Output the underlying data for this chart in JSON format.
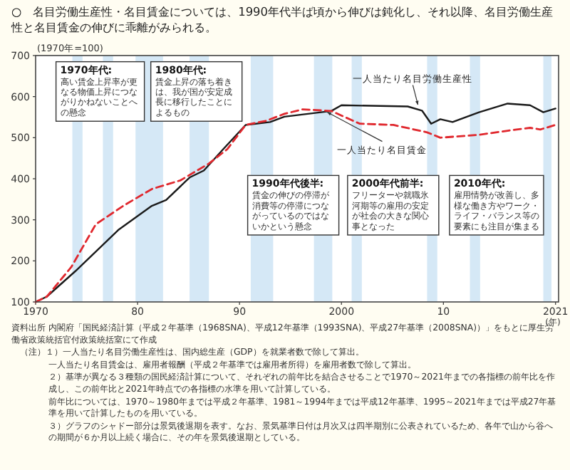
{
  "chart_data": {
    "type": "line",
    "title": "○　名目労働生産性・名目賃金については、1990年代半ば頃から伸びは鈍化し、それ以降、名目労働生産性と名目賃金の伸びに乖離がみられる。",
    "ylabel": "(1970年=100)",
    "xlabel": "(年)",
    "xlim": [
      1970,
      2021.3
    ],
    "ylim": [
      100,
      700
    ],
    "xticks": [
      1970,
      {
        "value": 1980,
        "label": "80"
      },
      {
        "value": 1990,
        "label": "90"
      },
      2000,
      {
        "value": 2010,
        "label": "10"
      },
      2021
    ],
    "yticks": [
      100,
      200,
      300,
      400,
      500,
      600,
      700
    ],
    "legend": false,
    "grid": false,
    "series": [
      {
        "name": "一人当たり名目労働生産性",
        "color": "#1a1a1a",
        "line_style": "solid",
        "x": [
          1970,
          1971.1,
          1973.9,
          1978.1,
          1981.4,
          1982.8,
          1985.1,
          1986.5,
          1988.4,
          1990.6,
          1993,
          1994.4,
          1999,
          2000,
          2006.5,
          2007.9,
          2008.8,
          2009.7,
          2010.9,
          2013.5,
          2016.3,
          2018.5,
          2019.8,
          2021
        ],
        "values": [
          100,
          113,
          175,
          275,
          334,
          348,
          403,
          420,
          472,
          531,
          538,
          551,
          565,
          579,
          576,
          566,
          534,
          545,
          538,
          562,
          583,
          579,
          562,
          571
        ]
      },
      {
        "name": "一人当たり名目賃金",
        "color": "#e0282e",
        "line_style": "dashed",
        "x": [
          1970,
          1971.1,
          1973.5,
          1975.9,
          1978.6,
          1981.4,
          1984.2,
          1987,
          1988.8,
          1990.6,
          1992.6,
          1994.4,
          1996.2,
          1999,
          2001.8,
          2005.1,
          2008.4,
          2009.7,
          2013.5,
          2016.3,
          2018.5,
          2019.5,
          2021
        ],
        "values": [
          100,
          113,
          185,
          289,
          334,
          375,
          396,
          437,
          472,
          531,
          541,
          558,
          569,
          565,
          534,
          531,
          513,
          500,
          507,
          517,
          524,
          520,
          531
        ]
      }
    ],
    "bands": [
      {
        "axis": "x",
        "from": 1973.6,
        "to": 1974.6,
        "color": "#d5e8f6"
      },
      {
        "axis": "x",
        "from": 1976.6,
        "to": 1977.6,
        "color": "#d5e8f6"
      },
      {
        "axis": "x",
        "from": 1979.8,
        "to": 1982.5,
        "color": "#d5e8f6"
      },
      {
        "axis": "x",
        "from": 1985.1,
        "to": 1987,
        "color": "#d5e8f6"
      },
      {
        "axis": "x",
        "from": 1991.1,
        "to": 1993.3,
        "color": "#d5e8f6"
      },
      {
        "axis": "x",
        "from": 1997.3,
        "to": 1999.1,
        "color": "#d5e8f6"
      },
      {
        "axis": "x",
        "from": 2001,
        "to": 2002,
        "color": "#d5e8f6"
      },
      {
        "axis": "x",
        "from": 2008.4,
        "to": 2009.4,
        "color": "#d5e8f6"
      },
      {
        "axis": "x",
        "from": 2012.6,
        "to": 2013.6,
        "color": "#d5e8f6"
      },
      {
        "axis": "x",
        "from": 2019.8,
        "to": 2020.6,
        "color": "#d5e8f6"
      }
    ],
    "annotations": [
      "1970年代:\n高い賃金上昇率が更なる物価上昇につながりかねないことへの懸念",
      "1980年代:\n賃金上昇の落ち着きは、我が国が安定成長に移行したことによるもの",
      "1990年代後半:\n賃金の伸びの停滞が消費等の停滞につながっているのではないかという懸念",
      "2000年代前半:\nフリーターや就職氷河期等の雇用の安定が社会の大きな関心事となった",
      "2010年代:\n雇用情勢が改善し、多様な働き方やワーク・ライフ・バランス等の要素にも注目が集まる",
      "資料出所 内閣府「国民経済計算（平成２年基準（1968SNA)、平成12年基準（1993SNA)、平成27年基準（2008SNA)）」をもとに厚生労働省政策統括官付政策統括室にて作成",
      "（注）１）一人当たり名目労働生産性は、国内総生産（GDP）を就業者数で除して算出。",
      "一人当たり名目賃金は、雇用者報酬（平成２年基準では雇用者所得）を雇用者数で除して算出。",
      "２）基準が異なる３種類の国民経済計算について、それぞれの前年比を結合させることで1970～2021年までの各指標の前年比を作成し、この前年比と2021年時点での各指標の水準を用いて計算している。",
      "前年比については、1970～1980年までは平成２年基準、1981～1994年までは平成12年基準、1995～2021年までは平成27年基準を用いて計算したものを用いている。",
      "３）グラフのシャドー部分は景気後退期を表す。なお、景気基準日付は月次又は四半期別に公表されているため、各年で山から谷への期間が６か月以上続く場合に、その年を景気後退期としている。"
    ]
  }
}
